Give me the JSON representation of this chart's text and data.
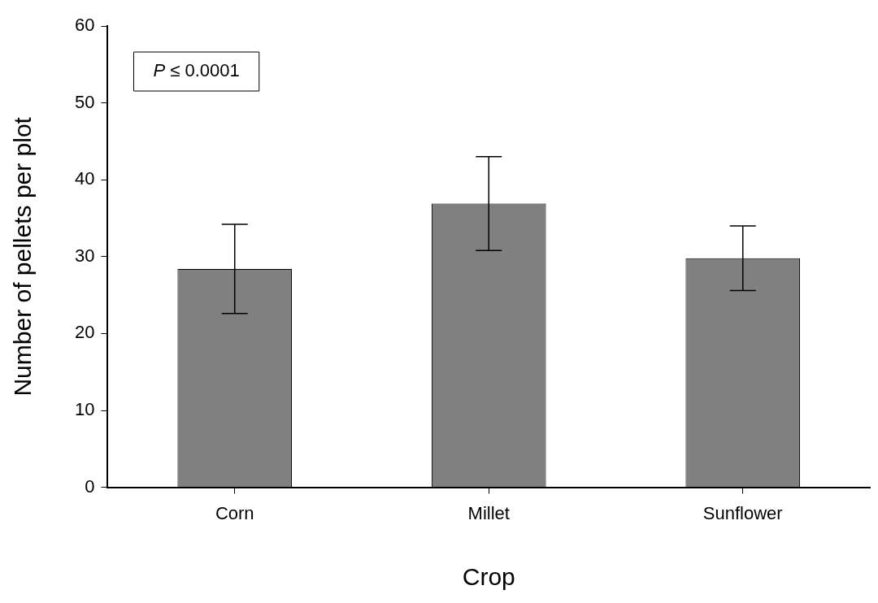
{
  "chart_data": {
    "type": "bar",
    "xlabel": "Crop",
    "ylabel": "Number of pellets per plot",
    "categories": [
      "Corn",
      "Millet",
      "Sunflower"
    ],
    "values": [
      28.4,
      36.9,
      29.8
    ],
    "errors": [
      5.8,
      6.1,
      4.2
    ],
    "color": "#808080",
    "ylim": [
      0,
      60
    ],
    "yticks": [
      0,
      10,
      20,
      30,
      40,
      50,
      60
    ],
    "grid": false,
    "legend": false,
    "annotations": [
      "P ≤ 0.0001"
    ]
  }
}
